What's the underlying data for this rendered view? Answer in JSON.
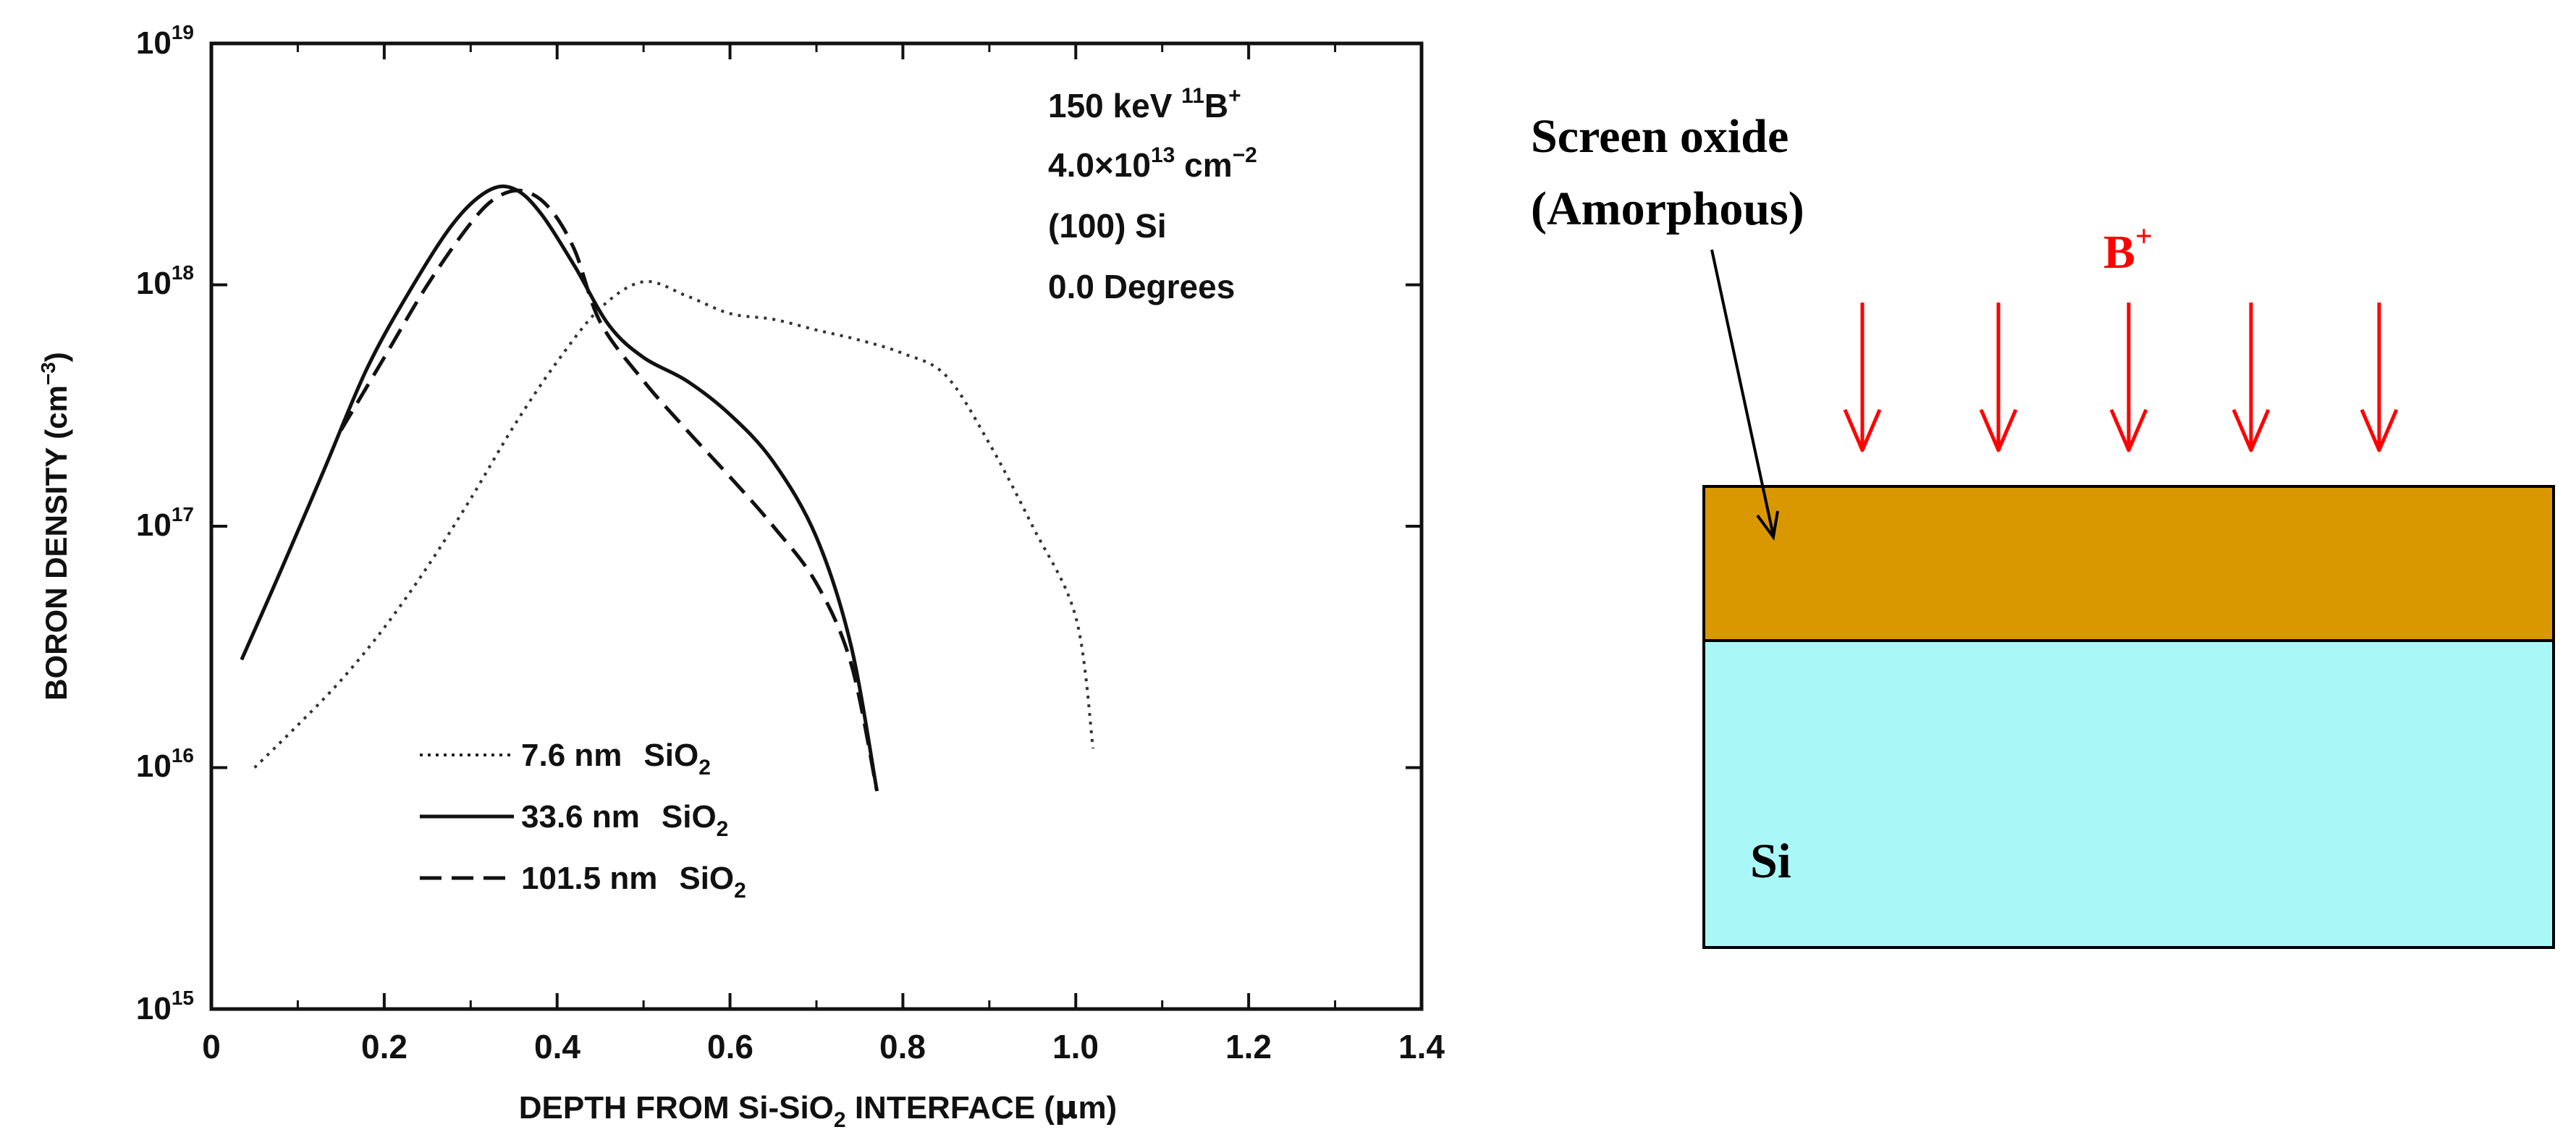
{
  "chart_data": {
    "type": "line",
    "title": "",
    "xlabel_parts": [
      "DEPTH FROM Si-SiO",
      "2",
      " INTERFACE (",
      "μ",
      "m)"
    ],
    "ylabel_parts": [
      "BORON DENSITY (cm",
      "−3",
      ")"
    ],
    "xscale": "linear",
    "yscale": "log",
    "xlim": [
      0,
      1.4
    ],
    "ylim": [
      1000000000000000.0,
      1e+19
    ],
    "x_ticks": [
      "0",
      "0.2",
      "0.4",
      "0.6",
      "0.8",
      "1.0",
      "1.2",
      "1.4"
    ],
    "y_ticks": [
      {
        "base": "10",
        "exp": "15",
        "value": 1000000000000000.0
      },
      {
        "base": "10",
        "exp": "16",
        "value": 1e+16
      },
      {
        "base": "10",
        "exp": "17",
        "value": 1e+17
      },
      {
        "base": "10",
        "exp": "18",
        "value": 1e+18
      },
      {
        "base": "10",
        "exp": "19",
        "value": 1e+19
      }
    ],
    "annotation": {
      "line1": {
        "energy": "150 keV ",
        "mass": "11",
        "ion": "B",
        "charge": "+"
      },
      "line2": {
        "value": "4.0×10",
        "exp1": "13",
        "unit": " cm",
        "exp2": "−2"
      },
      "line3": "(100) Si",
      "line4": "0.0 Degrees"
    },
    "legend_position": "lower-left",
    "series": [
      {
        "name": "7.6 nm SiO2",
        "label": "7.6 nm",
        "oxide": "SiO",
        "oxide_sub": "2",
        "style": "dotted",
        "x": [
          0.05,
          0.1,
          0.15,
          0.2,
          0.25,
          0.3,
          0.35,
          0.4,
          0.45,
          0.5,
          0.55,
          0.6,
          0.65,
          0.7,
          0.75,
          0.8,
          0.85,
          0.9,
          0.95,
          1.0,
          1.02
        ],
        "y": [
          1e+16,
          1.5e+16,
          2.3e+16,
          3.8e+16,
          6.8e+16,
          1.3e+17,
          2.6e+17,
          4.8e+17,
          8e+17,
          1.03e+18,
          9e+17,
          7.6e+17,
          7.2e+17,
          6.5e+17,
          5.9e+17,
          5.2e+17,
          4.2e+17,
          2.2e+17,
          1e+17,
          4.2e+16,
          1.2e+16
        ]
      },
      {
        "name": "33.6 nm SiO2",
        "label": "33.6 nm",
        "oxide": "SiO",
        "oxide_sub": "2",
        "style": "solid",
        "x": [
          0.035,
          0.08,
          0.13,
          0.18,
          0.23,
          0.28,
          0.32,
          0.35,
          0.38,
          0.42,
          0.46,
          0.5,
          0.55,
          0.6,
          0.65,
          0.7,
          0.74,
          0.77
        ],
        "y": [
          2.8e+16,
          6.5e+16,
          1.7e+17,
          4.5e+17,
          9.5e+17,
          1.8e+18,
          2.45e+18,
          2.5e+18,
          2e+18,
          1.2e+18,
          6.8e+17,
          5e+17,
          4e+17,
          2.9e+17,
          1.85e+17,
          9e+16,
          3.2e+16,
          8000000000000000.0
        ]
      },
      {
        "name": "101.5 nm SiO2",
        "label": "101.5 nm",
        "oxide": "SiO",
        "oxide_sub": "2",
        "style": "dashed",
        "x": [
          0.15,
          0.2,
          0.25,
          0.3,
          0.33,
          0.36,
          0.39,
          0.42,
          0.45,
          0.5,
          0.55,
          0.6,
          0.65,
          0.7,
          0.74,
          0.77
        ],
        "y": [
          2.5e+17,
          5e+17,
          1e+18,
          1.8e+18,
          2.3e+18,
          2.45e+18,
          2.1e+18,
          1.4e+18,
          7e+17,
          4e+17,
          2.5e+17,
          1.6e+17,
          1e+17,
          5.8e+16,
          2.7e+16,
          8000000000000000.0
        ]
      }
    ]
  },
  "diagram": {
    "oxide_label_line1": "Screen oxide",
    "oxide_label_line2": "(Amorphous)",
    "ion_label": "B",
    "ion_charge": "+",
    "substrate_label": "Si",
    "oxide_color": "#d99800",
    "substrate_color": "#aaf7f7",
    "arrow_color": "#ff0000",
    "arrow_count": 5
  }
}
